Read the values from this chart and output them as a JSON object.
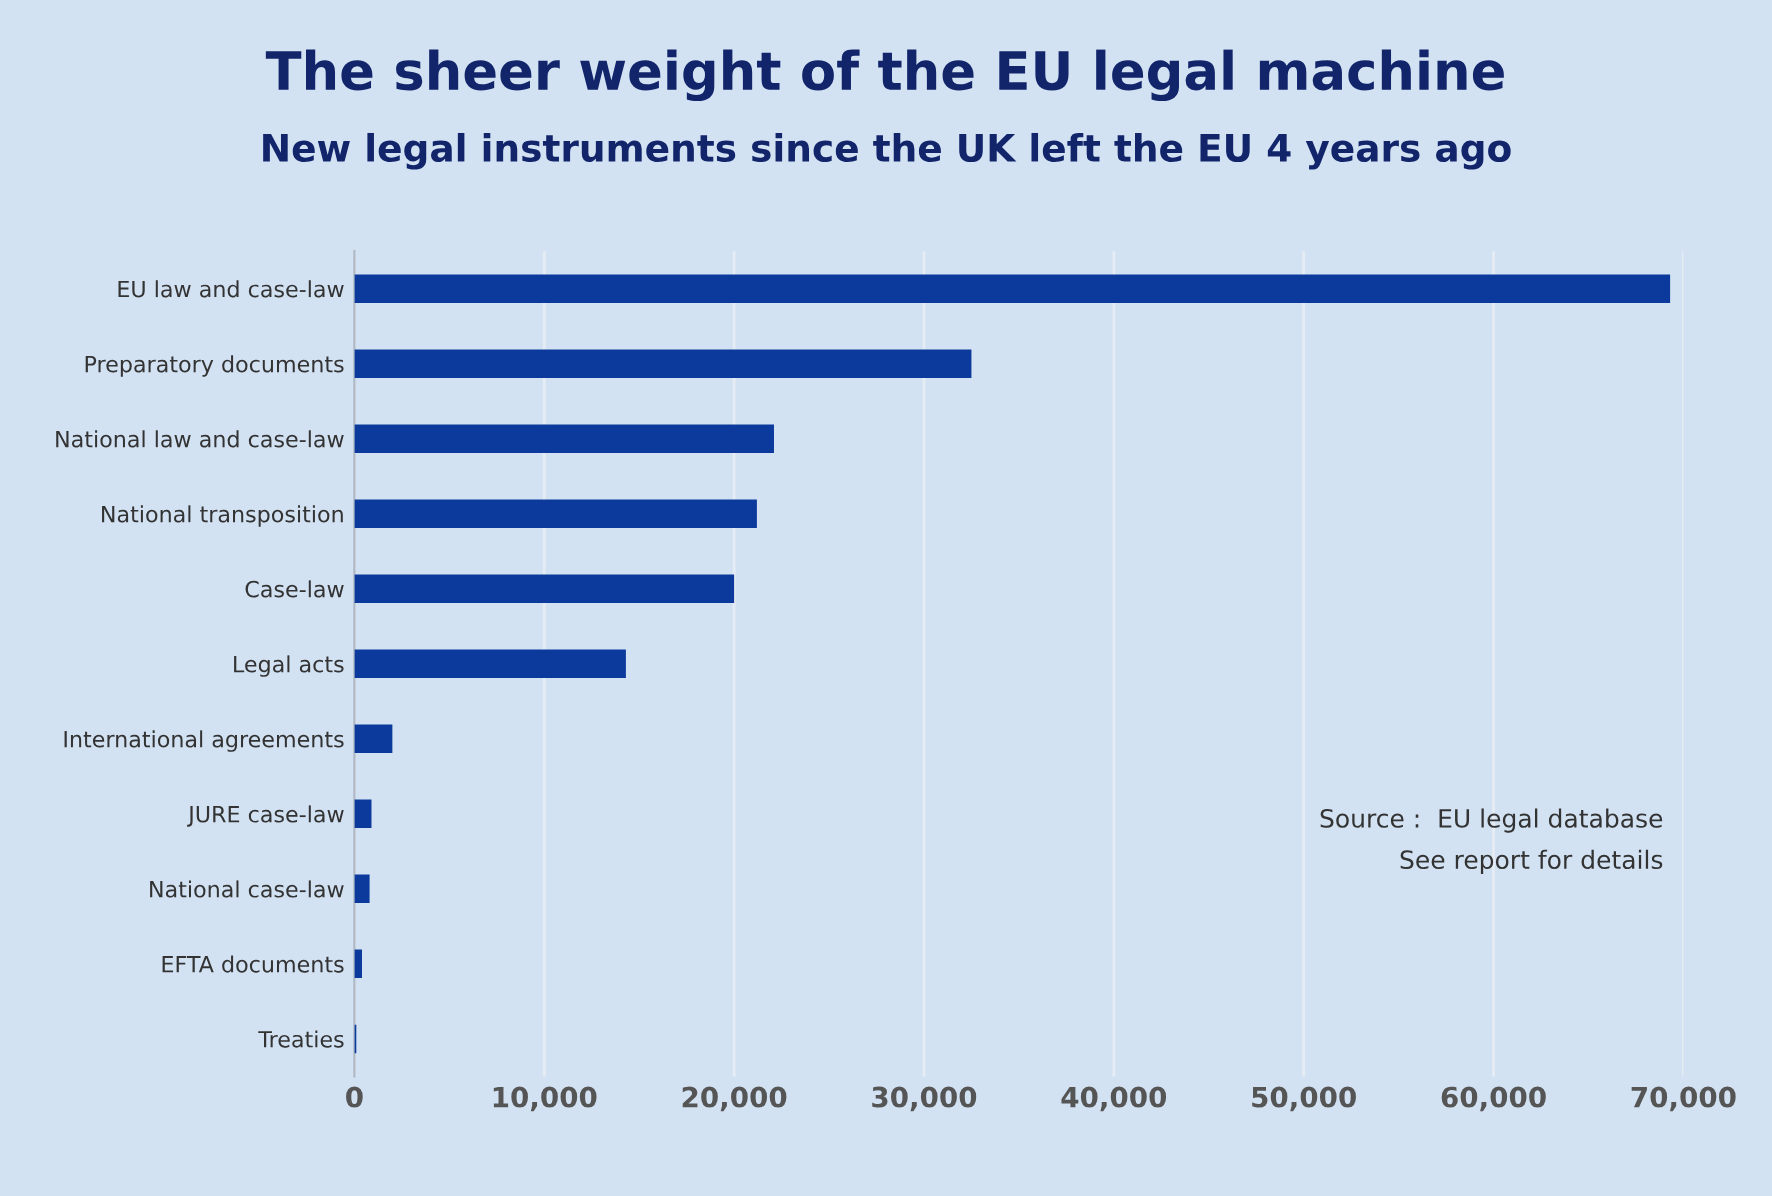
{
  "chart_data": {
    "type": "bar",
    "orientation": "horizontal",
    "title": "The sheer weight of the EU legal machine",
    "subtitle": "New legal instruments since the UK left the EU 4 years ago",
    "categories": [
      "EU law and case-law",
      "Preparatory documents",
      "National law and case-law",
      "National transposition",
      "Case-law",
      "Legal acts",
      "International agreements",
      "JURE case-law",
      "National case-law",
      "EFTA documents",
      "Treaties"
    ],
    "values": [
      69300,
      32500,
      22100,
      21200,
      20000,
      14300,
      2000,
      900,
      800,
      400,
      100
    ],
    "color": "#0b3a9c",
    "xlim": [
      0,
      70000
    ],
    "xticks": [
      {
        "value": 0,
        "label": "0"
      },
      {
        "value": 10000,
        "label": "10,000"
      },
      {
        "value": 20000,
        "label": "20,000"
      },
      {
        "value": 30000,
        "label": "30,000"
      },
      {
        "value": 40000,
        "label": "40,000"
      },
      {
        "value": 50000,
        "label": "50,000"
      },
      {
        "value": 60000,
        "label": "60,000"
      },
      {
        "value": 70000,
        "label": "70,000"
      }
    ],
    "grid": "x",
    "annotations": [
      "Source :  EU legal database",
      "See report for details"
    ]
  }
}
